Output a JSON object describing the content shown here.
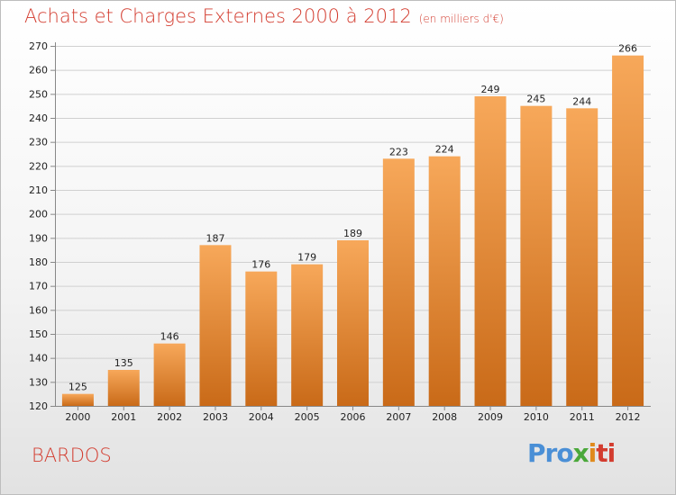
{
  "title": "Achats et Charges Externes 2000 à 2012",
  "subtitle": "(en milliers d'€)",
  "commune": "BARDOS",
  "brand": {
    "p1": "Pro",
    "p2": "x",
    "p3": "i",
    "p4": "ti"
  },
  "colors": {
    "bar_top": "#f7a85a",
    "bar_bottom": "#c96a18",
    "title": "#d33c2f"
  },
  "chart_data": {
    "type": "bar",
    "title": "Achats et Charges Externes 2000 à 2012",
    "subtitle": "(en milliers d'€)",
    "categories": [
      "2000",
      "2001",
      "2002",
      "2003",
      "2004",
      "2005",
      "2006",
      "2007",
      "2008",
      "2009",
      "2010",
      "2011",
      "2012"
    ],
    "values": [
      125,
      135,
      146,
      187,
      176,
      179,
      189,
      223,
      224,
      249,
      245,
      244,
      266
    ],
    "ylim": [
      120,
      270
    ],
    "yticks": [
      120,
      130,
      140,
      150,
      160,
      170,
      180,
      190,
      200,
      210,
      220,
      230,
      240,
      250,
      260,
      270
    ],
    "grid": true,
    "legend": "none"
  }
}
